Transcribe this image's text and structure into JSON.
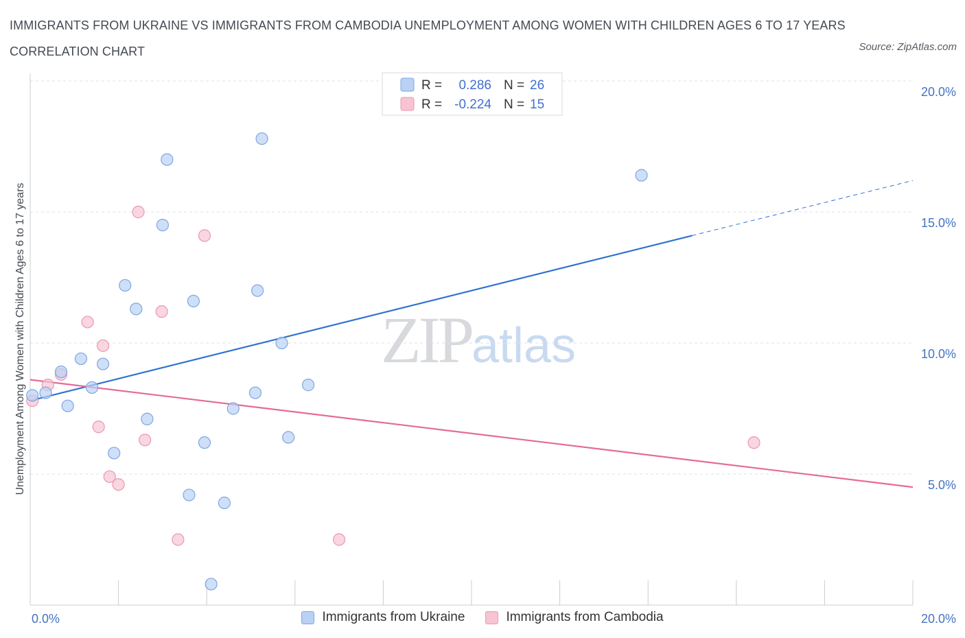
{
  "title": "IMMIGRANTS FROM UKRAINE VS IMMIGRANTS FROM CAMBODIA UNEMPLOYMENT AMONG WOMEN WITH CHILDREN AGES 6 TO 17 YEARS CORRELATION CHART",
  "source": "Source: ZipAtlas.com",
  "watermark": {
    "zip": "ZIP",
    "atlas": "atlas"
  },
  "legend_top": {
    "r_label": "R =",
    "n_label": "N =",
    "rows": [
      {
        "r": "0.286",
        "n": "26"
      },
      {
        "r": "-0.224",
        "n": "15"
      }
    ]
  },
  "colors": {
    "ukraine_fill": "#b9d1f5",
    "ukraine_stroke": "#7fa6e0",
    "ukraine_line": "#2f72d0",
    "cambodia_fill": "#f7c4d3",
    "cambodia_stroke": "#ea97b1",
    "cambodia_line": "#e56a98",
    "tick": "#4472c4",
    "grid": "#dde1e6"
  },
  "chart_data": {
    "type": "scatter",
    "title": "IMMIGRANTS FROM UKRAINE VS IMMIGRANTS FROM CAMBODIA UNEMPLOYMENT AMONG WOMEN WITH CHILDREN AGES 6 TO 17 YEARS CORRELATION CHART",
    "xlabel": "",
    "ylabel": "Unemployment Among Women with Children Ages 6 to 17 years",
    "xlim": [
      0,
      20
    ],
    "ylim": [
      0,
      20
    ],
    "x_tick_labels": [
      "0.0%",
      "20.0%"
    ],
    "y_ticks": [
      5,
      10,
      15,
      20
    ],
    "y_tick_labels": [
      "5.0%",
      "10.0%",
      "15.0%",
      "20.0%"
    ],
    "grid": true,
    "legend_position": "top-center",
    "series": [
      {
        "name": "Immigrants from Ukraine",
        "r": 0.286,
        "n": 26,
        "points": [
          [
            0.05,
            8.0
          ],
          [
            0.35,
            8.1
          ],
          [
            0.7,
            8.9
          ],
          [
            0.85,
            7.6
          ],
          [
            1.15,
            9.4
          ],
          [
            1.4,
            8.3
          ],
          [
            1.65,
            9.2
          ],
          [
            1.9,
            5.8
          ],
          [
            2.15,
            12.2
          ],
          [
            2.4,
            11.3
          ],
          [
            2.65,
            7.1
          ],
          [
            3.0,
            14.5
          ],
          [
            3.1,
            17.0
          ],
          [
            3.6,
            4.2
          ],
          [
            3.7,
            11.6
          ],
          [
            3.95,
            6.2
          ],
          [
            4.1,
            0.8
          ],
          [
            4.4,
            3.9
          ],
          [
            4.6,
            7.5
          ],
          [
            5.1,
            8.1
          ],
          [
            5.15,
            12.0
          ],
          [
            5.25,
            17.8
          ],
          [
            5.7,
            10.0
          ],
          [
            5.85,
            6.4
          ],
          [
            6.3,
            8.4
          ],
          [
            13.85,
            16.4
          ]
        ],
        "trend": {
          "x0": 0,
          "y0": 7.8,
          "x1": 15.0,
          "y1": 14.1,
          "dashed_to_x": 20,
          "dashed_to_y": 16.2
        }
      },
      {
        "name": "Immigrants from Cambodia",
        "r": -0.224,
        "n": 15,
        "points": [
          [
            0.05,
            7.8
          ],
          [
            0.4,
            8.4
          ],
          [
            0.7,
            8.8
          ],
          [
            1.3,
            10.8
          ],
          [
            1.65,
            9.9
          ],
          [
            1.55,
            6.8
          ],
          [
            1.8,
            4.9
          ],
          [
            2.0,
            4.6
          ],
          [
            2.45,
            15.0
          ],
          [
            2.6,
            6.3
          ],
          [
            2.98,
            11.2
          ],
          [
            3.35,
            2.5
          ],
          [
            3.95,
            14.1
          ],
          [
            7.0,
            2.5
          ],
          [
            16.4,
            6.2
          ]
        ],
        "trend": {
          "x0": 0,
          "y0": 8.6,
          "x1": 20,
          "y1": 4.5
        }
      }
    ]
  }
}
